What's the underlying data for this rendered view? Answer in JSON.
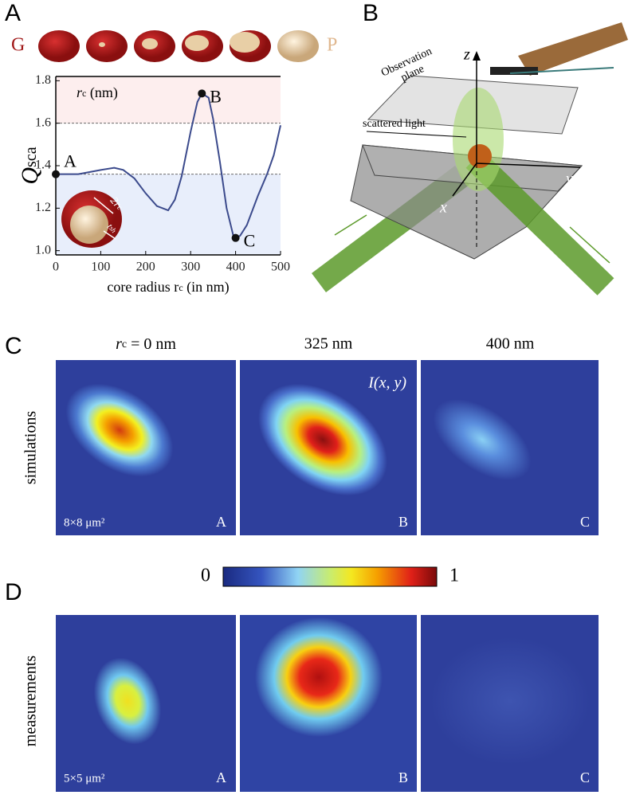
{
  "panel_labels": [
    "A",
    "B",
    "C",
    "D"
  ],
  "top_row": {
    "left": "G",
    "right": "P"
  },
  "chart_data": {
    "type": "line",
    "ylabel_main": "Q",
    "ylabel_sub": "sca",
    "xlabel": "core radius r",
    "xlabel_sub": "c",
    "xlabel_end": " (in nm)",
    "legend_main": "r",
    "legend_sub": "c",
    "legend_end": " (nm)",
    "inset_labels": [
      "2r",
      "c",
      "t",
      "sh"
    ],
    "x": [
      0,
      25,
      50,
      75,
      100,
      130,
      150,
      175,
      200,
      225,
      250,
      265,
      280,
      300,
      315,
      325,
      340,
      350,
      365,
      380,
      395,
      400,
      410,
      425,
      450,
      470,
      485,
      500
    ],
    "series": [
      {
        "color": "#3b4a8c",
        "values": [
          1.36,
          1.36,
          1.36,
          1.37,
          1.38,
          1.39,
          1.38,
          1.34,
          1.27,
          1.21,
          1.19,
          1.24,
          1.35,
          1.56,
          1.7,
          1.74,
          1.72,
          1.62,
          1.42,
          1.2,
          1.07,
          1.06,
          1.07,
          1.12,
          1.26,
          1.36,
          1.45,
          1.59
        ]
      }
    ],
    "points": [
      {
        "label": "A",
        "x": 0,
        "y": 1.36
      },
      {
        "label": "B",
        "x": 325,
        "y": 1.74
      },
      {
        "label": "C",
        "x": 400,
        "y": 1.06
      }
    ],
    "hlines": [
      1.6,
      1.36
    ],
    "xlim": [
      0,
      500
    ],
    "ylim": [
      0.98,
      1.82
    ],
    "xticks": [
      0,
      100,
      200,
      300,
      400,
      500
    ],
    "yticks": [
      {
        "value": 1,
        "label": "1.0"
      },
      1.2,
      1.4,
      1.6,
      1.8
    ]
  },
  "panel_b": {
    "axes": [
      "z",
      "y",
      "x"
    ],
    "observation": [
      "Observation",
      "plane"
    ],
    "scattered": "scattered light"
  },
  "panel_c": {
    "col_main": "r",
    "col_sub": "c",
    "col_end": " = 0 nm",
    "columns": [
      "325 nm",
      "400 nm"
    ],
    "intensity": "I(x, y)",
    "row_label": "simulations",
    "scale": "8×8 μm²",
    "corners": [
      "A",
      "B",
      "C"
    ]
  },
  "colorbar": {
    "min": "0",
    "max": "1"
  },
  "panel_d": {
    "row_label": "measurements",
    "scale": "5×5 μm²",
    "corners": [
      "A",
      "B",
      "C"
    ]
  }
}
